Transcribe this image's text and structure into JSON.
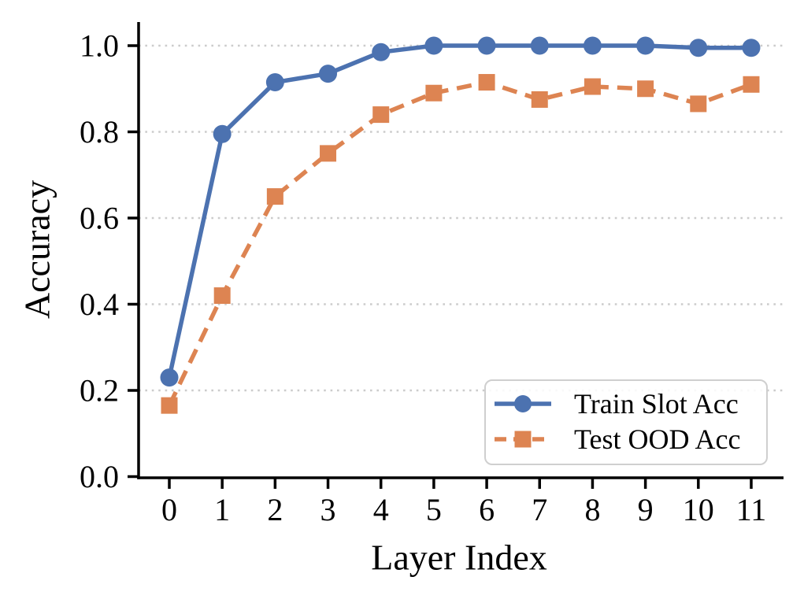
{
  "chart_data": {
    "type": "line",
    "title": "",
    "xlabel": "Layer Index",
    "ylabel": "Accuracy",
    "x": [
      0,
      1,
      2,
      3,
      4,
      5,
      6,
      7,
      8,
      9,
      10,
      11
    ],
    "xticks": [
      "0",
      "1",
      "2",
      "3",
      "4",
      "5",
      "6",
      "7",
      "8",
      "9",
      "10",
      "11"
    ],
    "yticks": [
      "0.0",
      "0.2",
      "0.4",
      "0.6",
      "0.8",
      "1.0"
    ],
    "ytick_values": [
      0.0,
      0.2,
      0.4,
      0.6,
      0.8,
      1.0
    ],
    "xlim": [
      -0.6,
      11.6
    ],
    "ylim": [
      0.0,
      1.055
    ],
    "grid": "horizontal-dotted",
    "grid_color": "#cccccc",
    "axis_color": "#000000",
    "legend_position": "lower-right",
    "series": [
      {
        "name": "Train Slot Acc",
        "color": "#4C72B0",
        "marker": "circle",
        "line_style": "solid",
        "values": [
          0.23,
          0.795,
          0.915,
          0.935,
          0.985,
          1.0,
          1.0,
          1.0,
          1.0,
          1.0,
          0.995,
          0.995
        ]
      },
      {
        "name": "Test OOD Acc",
        "color": "#DD8452",
        "marker": "square",
        "line_style": "dashed",
        "values": [
          0.165,
          0.42,
          0.65,
          0.75,
          0.84,
          0.89,
          0.915,
          0.875,
          0.905,
          0.9,
          0.865,
          0.91
        ]
      }
    ]
  }
}
